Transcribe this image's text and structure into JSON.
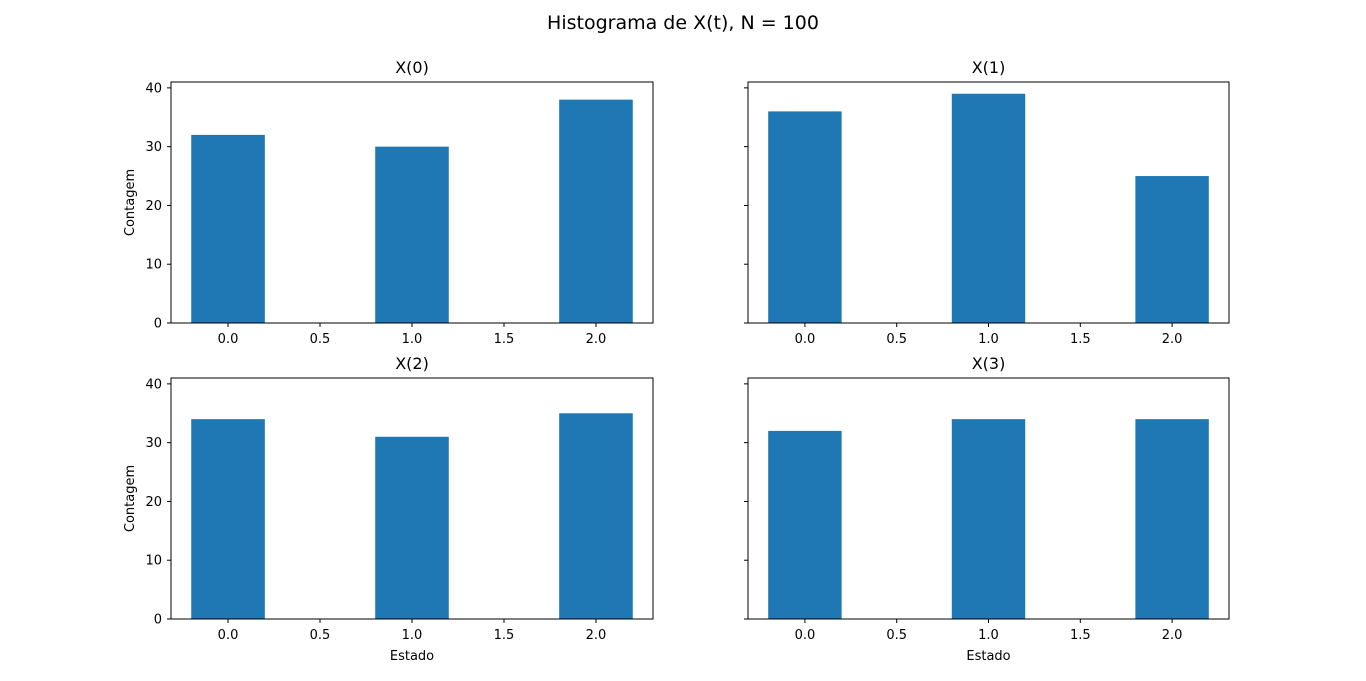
{
  "figure": {
    "title": "Histograma de X(t), N = 100"
  },
  "chart_data": [
    {
      "type": "bar",
      "title": "X(0)",
      "xlabel": "",
      "ylabel": "Contagem",
      "x": [
        0,
        1,
        2
      ],
      "values": [
        32,
        30,
        38
      ],
      "bar_width": 0.4,
      "xlim": [
        -0.31,
        2.31
      ],
      "ylim": [
        0,
        41
      ],
      "xticks": [
        "0.0",
        "0.5",
        "1.0",
        "1.5",
        "2.0"
      ],
      "yticks": [
        "0",
        "10",
        "20",
        "30",
        "40"
      ],
      "color": "#1f77b4",
      "grid": false
    },
    {
      "type": "bar",
      "title": "X(1)",
      "xlabel": "",
      "ylabel": "",
      "x": [
        0,
        1,
        2
      ],
      "values": [
        36,
        39,
        25
      ],
      "bar_width": 0.4,
      "xlim": [
        -0.31,
        2.31
      ],
      "ylim": [
        0,
        41
      ],
      "xticks": [
        "0.0",
        "0.5",
        "1.0",
        "1.5",
        "2.0"
      ],
      "yticks": [],
      "color": "#1f77b4",
      "grid": false
    },
    {
      "type": "bar",
      "title": "X(2)",
      "xlabel": "Estado",
      "ylabel": "Contagem",
      "x": [
        0,
        1,
        2
      ],
      "values": [
        34,
        31,
        35
      ],
      "bar_width": 0.4,
      "xlim": [
        -0.31,
        2.31
      ],
      "ylim": [
        0,
        41
      ],
      "xticks": [
        "0.0",
        "0.5",
        "1.0",
        "1.5",
        "2.0"
      ],
      "yticks": [
        "0",
        "10",
        "20",
        "30",
        "40"
      ],
      "color": "#1f77b4",
      "grid": false
    },
    {
      "type": "bar",
      "title": "X(3)",
      "xlabel": "Estado",
      "ylabel": "",
      "x": [
        0,
        1,
        2
      ],
      "values": [
        32,
        34,
        34
      ],
      "bar_width": 0.4,
      "xlim": [
        -0.31,
        2.31
      ],
      "ylim": [
        0,
        41
      ],
      "xticks": [
        "0.0",
        "0.5",
        "1.0",
        "1.5",
        "2.0"
      ],
      "yticks": [],
      "color": "#1f77b4",
      "grid": false
    }
  ]
}
